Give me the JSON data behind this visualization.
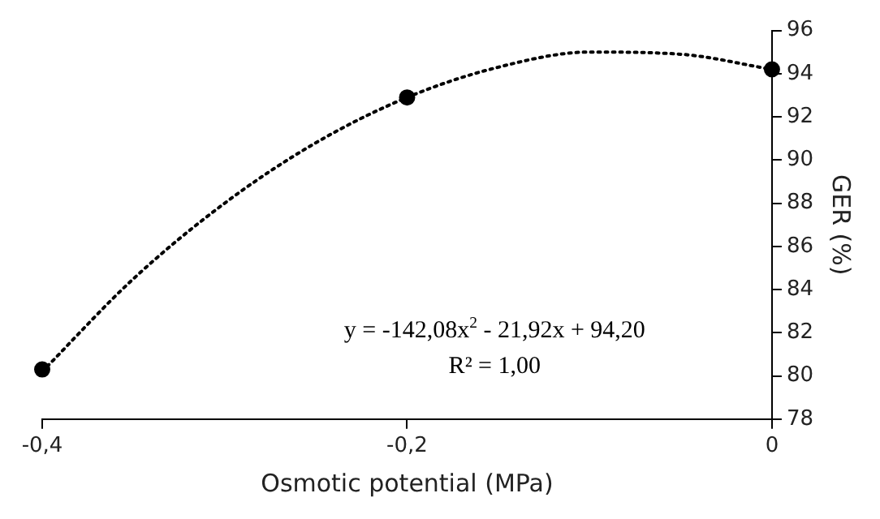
{
  "chart_data": {
    "type": "scatter",
    "xlabel": "Osmotic potential (MPa)",
    "ylabel": "GER (%)",
    "xlim": [
      -0.4,
      0
    ],
    "xticks": [
      {
        "value": -0.4,
        "label": "-0,4"
      },
      {
        "value": -0.2,
        "label": "-0,2"
      },
      {
        "value": 0,
        "label": "0"
      }
    ],
    "ylim": [
      78,
      96
    ],
    "yticks": [
      78,
      80,
      82,
      84,
      86,
      88,
      90,
      92,
      94,
      96
    ],
    "grid": false,
    "legend": false,
    "annotations": [
      "y = -142,08x$^{2}$ - 21,92x + 94,20",
      "R² = 1,00"
    ],
    "series": [
      {
        "color": "#000000",
        "marker": "circle",
        "x": [
          -0.4,
          -0.2,
          0
        ],
        "values": [
          80.3,
          92.9,
          94.2
        ]
      },
      {
        "type": "line",
        "color": "#000000",
        "marker": "none",
        "line_style": "dotted",
        "x": [
          -0.4,
          -0.35,
          -0.3,
          -0.25,
          -0.2,
          -0.15,
          -0.1,
          -0.05,
          0
        ],
        "values": [
          80.2,
          84.5,
          88.0,
          90.8,
          92.9,
          94.3,
          95.0,
          94.9,
          94.2
        ]
      }
    ]
  }
}
